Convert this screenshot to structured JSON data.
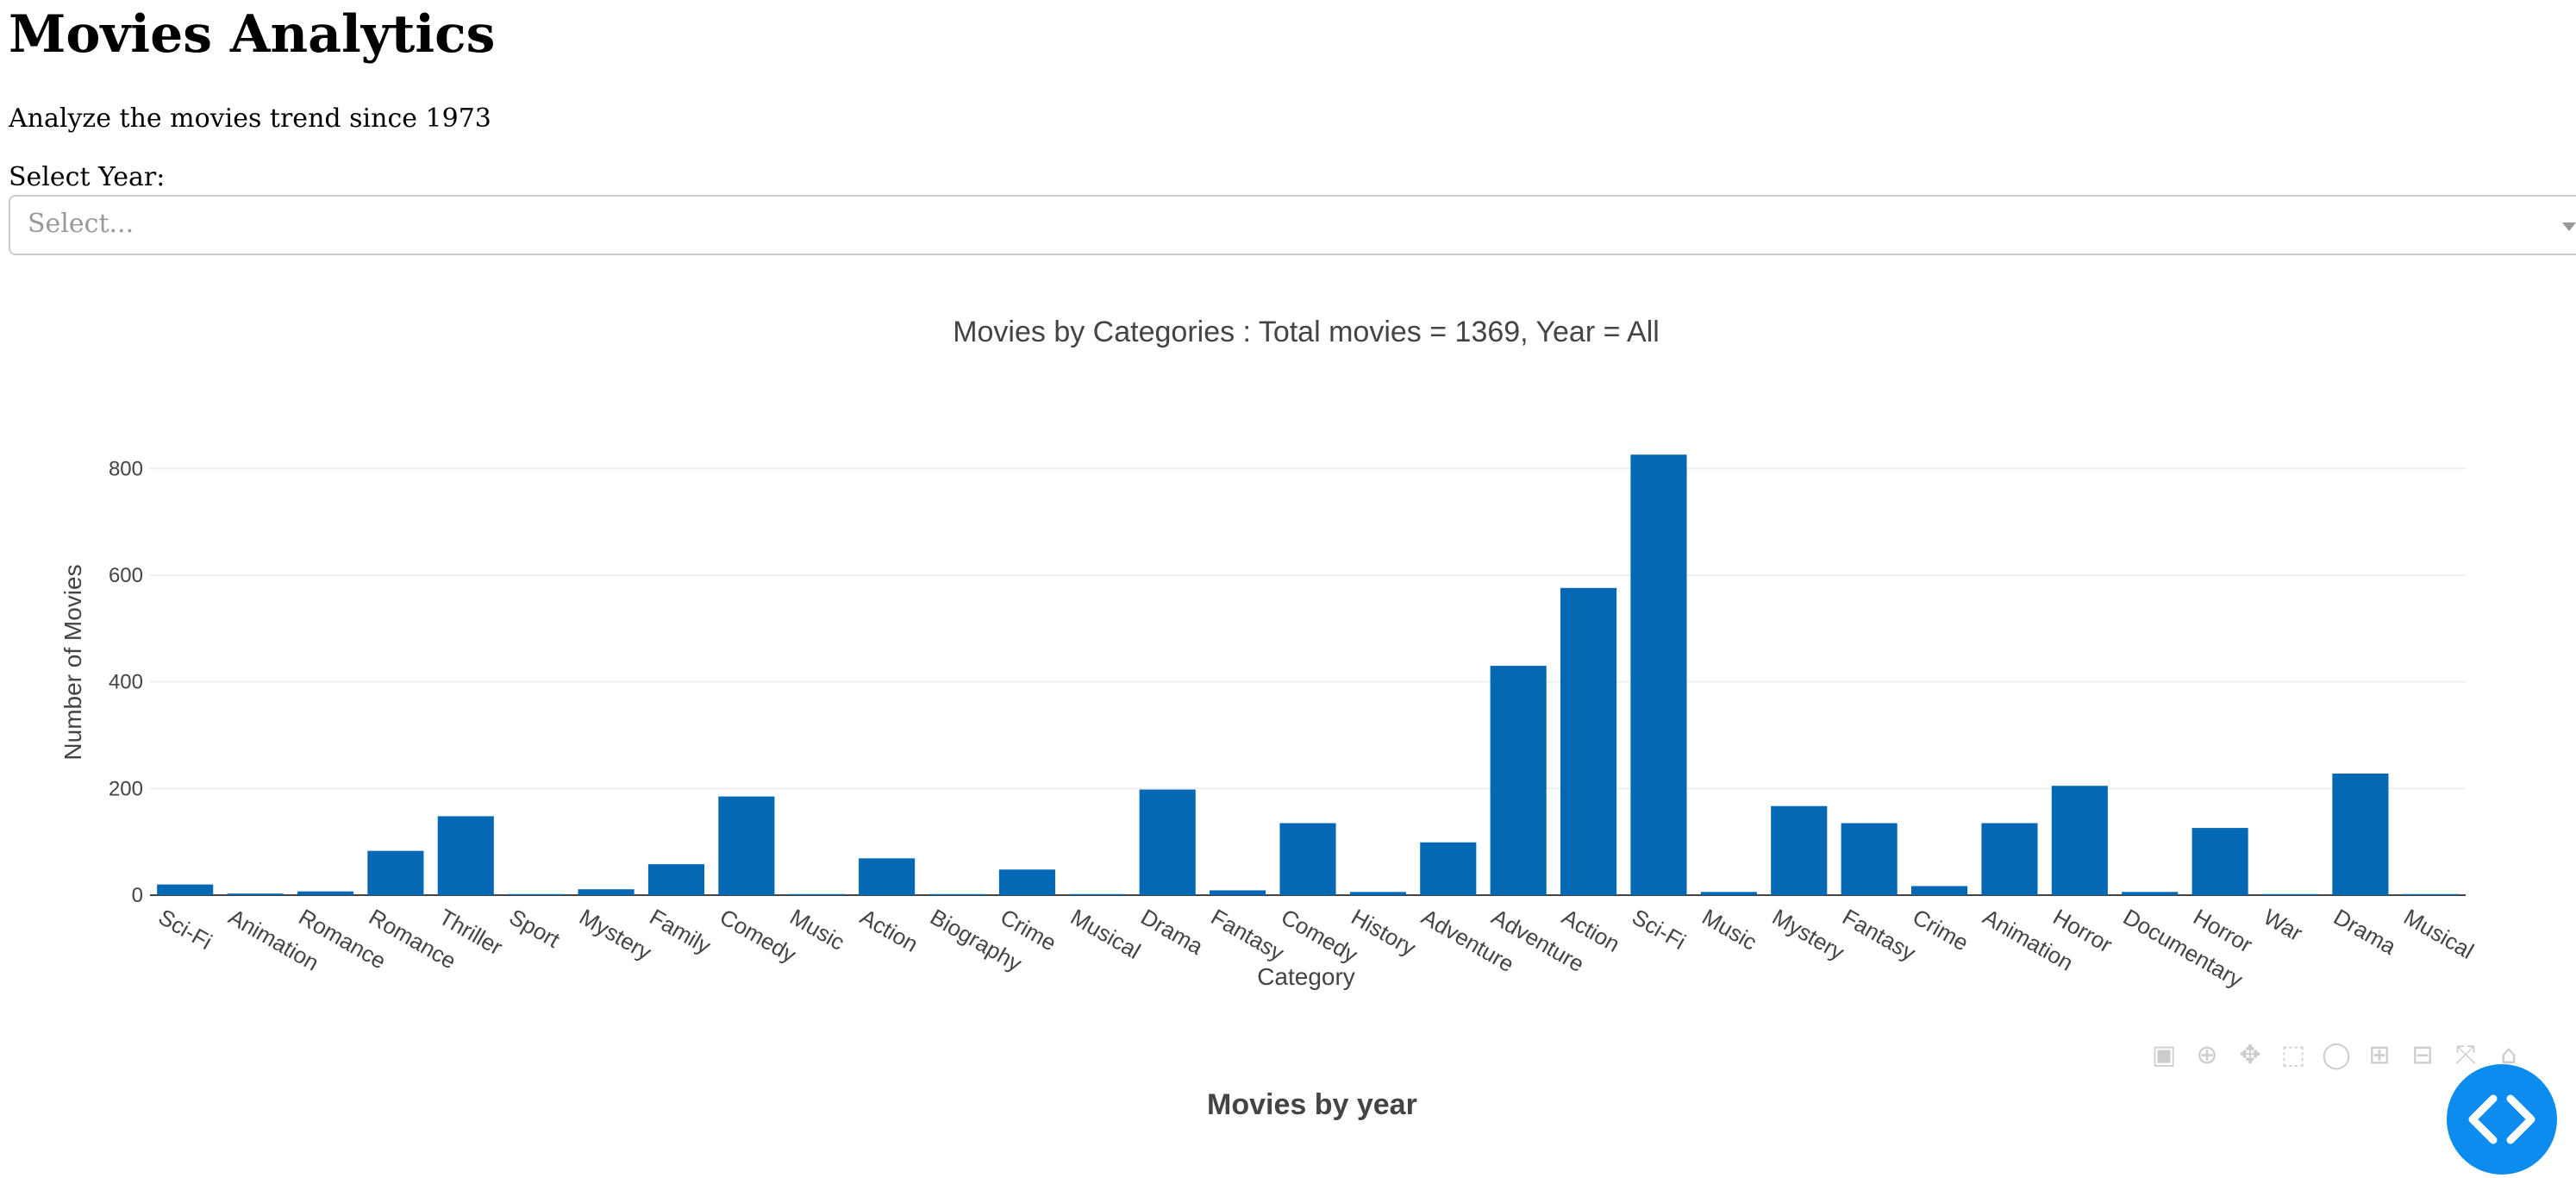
{
  "page": {
    "title": "Movies Analytics",
    "subtitle": "Analyze the movies trend since 1973",
    "year_label": "Select Year:",
    "year_select": {
      "placeholder": "Select..."
    }
  },
  "chart_data": {
    "type": "bar",
    "title": "Movies by Categories : Total movies = 1369, Year = All",
    "xlabel": "Category",
    "ylabel": "Number of Movies",
    "ylim": [
      0,
      870
    ],
    "yticks": [
      0,
      200,
      400,
      600,
      800
    ],
    "grid": true,
    "color": "#0468b4",
    "categories": [
      "Sci-Fi",
      "Animation",
      "Romance",
      "Romance",
      "Thriller",
      "Sport",
      "Mystery",
      "Family",
      "Comedy",
      "Music",
      "Action",
      "Biography",
      "Crime",
      "Musical",
      "Drama",
      "Fantasy",
      "Comedy",
      "History",
      "Adventure",
      "Adventure",
      "Action",
      "Sci-Fi",
      "Music",
      "Mystery",
      "Fantasy",
      "Crime",
      "Animation",
      "Horror",
      "Documentary",
      "Horror",
      "War",
      "Drama",
      "Musical"
    ],
    "values": [
      20,
      3,
      7,
      83,
      148,
      2,
      11,
      58,
      185,
      2,
      69,
      2,
      48,
      2,
      198,
      9,
      135,
      6,
      99,
      430,
      576,
      826,
      6,
      167,
      135,
      17,
      135,
      205,
      6,
      126,
      2,
      228,
      2
    ]
  },
  "second_chart": {
    "title": "Movies by year"
  },
  "modebar_icons": [
    "camera-icon",
    "zoom-icon",
    "pan-icon",
    "box-select-icon",
    "lasso-icon",
    "zoom-in-icon",
    "zoom-out-icon",
    "autoscale-icon",
    "reset-axes-icon"
  ],
  "fab": {
    "icon": "code-icon",
    "color": "#0d8cf0"
  }
}
